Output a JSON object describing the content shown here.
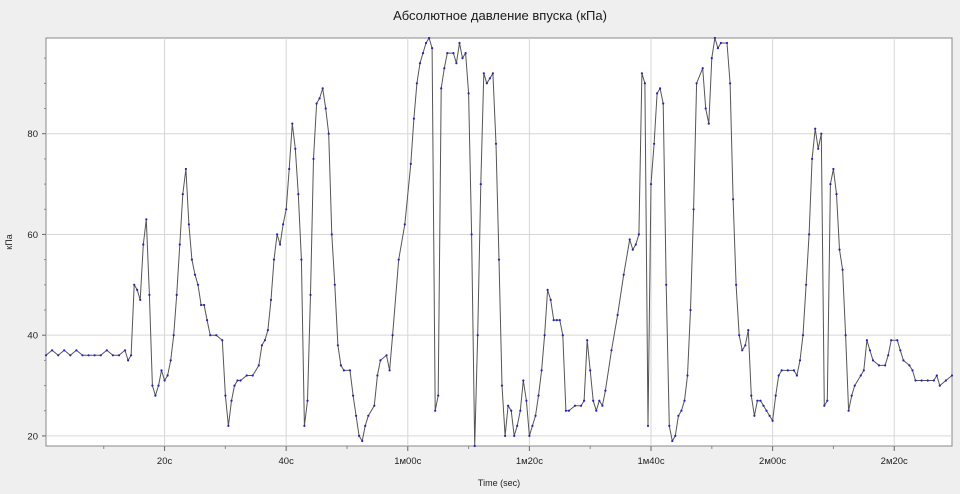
{
  "chart_data": {
    "type": "line",
    "title": "Абсолютное давление впуска (кПа)",
    "xlabel": "Time (sec)",
    "ylabel": "кПа",
    "x_unit": "seconds",
    "xlim": [
      0,
      149
    ],
    "ylim": [
      18,
      99
    ],
    "y_ticks": [
      20,
      40,
      60,
      80
    ],
    "x_ticks": [
      {
        "value": 19.5,
        "label": "20с"
      },
      {
        "value": 39.5,
        "label": "40с"
      },
      {
        "value": 59.5,
        "label": "1м00с"
      },
      {
        "value": 79.5,
        "label": "1м20с"
      },
      {
        "value": 99.5,
        "label": "1м40с"
      },
      {
        "value": 119.5,
        "label": "2м00с"
      },
      {
        "value": 139.5,
        "label": "2м20с"
      }
    ],
    "grid": true,
    "legend": "none",
    "line_color": "#555555",
    "marker_color": "#2222bb",
    "series": [
      {
        "points": [
          [
            0,
            36
          ],
          [
            1,
            37
          ],
          [
            2,
            36
          ],
          [
            3,
            37
          ],
          [
            4,
            36
          ],
          [
            5,
            37
          ],
          [
            6,
            36
          ],
          [
            7,
            36
          ],
          [
            8,
            36
          ],
          [
            9,
            36
          ],
          [
            10,
            37
          ],
          [
            11,
            36
          ],
          [
            12,
            36
          ],
          [
            13,
            37
          ],
          [
            13.5,
            35
          ],
          [
            14,
            36
          ],
          [
            14.5,
            50
          ],
          [
            15,
            49
          ],
          [
            15.5,
            47
          ],
          [
            16,
            58
          ],
          [
            16.5,
            63
          ],
          [
            17,
            48
          ],
          [
            17.5,
            30
          ],
          [
            18,
            28
          ],
          [
            18.5,
            30
          ],
          [
            19,
            33
          ],
          [
            19.5,
            31
          ],
          [
            20,
            32
          ],
          [
            20.5,
            35
          ],
          [
            21,
            40
          ],
          [
            21.5,
            48
          ],
          [
            22,
            58
          ],
          [
            22.5,
            68
          ],
          [
            23,
            73
          ],
          [
            23.5,
            62
          ],
          [
            24,
            55
          ],
          [
            24.5,
            52
          ],
          [
            25,
            50
          ],
          [
            25.5,
            46
          ],
          [
            26,
            46
          ],
          [
            26.5,
            43
          ],
          [
            27,
            40
          ],
          [
            28,
            40
          ],
          [
            29,
            39
          ],
          [
            29.5,
            28
          ],
          [
            30,
            22
          ],
          [
            30.5,
            27
          ],
          [
            31,
            30
          ],
          [
            31.5,
            31
          ],
          [
            32,
            31
          ],
          [
            33,
            32
          ],
          [
            34,
            32
          ],
          [
            35,
            34
          ],
          [
            35.5,
            38
          ],
          [
            36,
            39
          ],
          [
            36.5,
            41
          ],
          [
            37,
            47
          ],
          [
            37.5,
            55
          ],
          [
            38,
            60
          ],
          [
            38.5,
            58
          ],
          [
            39,
            62
          ],
          [
            39.5,
            65
          ],
          [
            40,
            73
          ],
          [
            40.5,
            82
          ],
          [
            41,
            77
          ],
          [
            41.5,
            68
          ],
          [
            42,
            55
          ],
          [
            42.5,
            22
          ],
          [
            43,
            27
          ],
          [
            43.5,
            48
          ],
          [
            44,
            75
          ],
          [
            44.5,
            86
          ],
          [
            45,
            87
          ],
          [
            45.5,
            89
          ],
          [
            46,
            85
          ],
          [
            46.5,
            80
          ],
          [
            47,
            60
          ],
          [
            47.5,
            50
          ],
          [
            48,
            38
          ],
          [
            48.5,
            34
          ],
          [
            49,
            33
          ],
          [
            50,
            33
          ],
          [
            50.5,
            28
          ],
          [
            51,
            24
          ],
          [
            51.5,
            20
          ],
          [
            52,
            19
          ],
          [
            52.5,
            22
          ],
          [
            53,
            24
          ],
          [
            54,
            26
          ],
          [
            54.5,
            32
          ],
          [
            55,
            35
          ],
          [
            56,
            36
          ],
          [
            56.5,
            33
          ],
          [
            57,
            40
          ],
          [
            58,
            55
          ],
          [
            59,
            62
          ],
          [
            60,
            74
          ],
          [
            60.5,
            83
          ],
          [
            61,
            90
          ],
          [
            61.5,
            94
          ],
          [
            62,
            96
          ],
          [
            62.5,
            98
          ],
          [
            63,
            99
          ],
          [
            63.5,
            97
          ],
          [
            64,
            25
          ],
          [
            64.5,
            28
          ],
          [
            65,
            89
          ],
          [
            65.5,
            93
          ],
          [
            66,
            96
          ],
          [
            67,
            96
          ],
          [
            67.5,
            94
          ],
          [
            68,
            98
          ],
          [
            68.5,
            95
          ],
          [
            69,
            96
          ],
          [
            69.5,
            88
          ],
          [
            70,
            60
          ],
          [
            70.5,
            18
          ],
          [
            71,
            40
          ],
          [
            71.5,
            70
          ],
          [
            72,
            92
          ],
          [
            72.5,
            90
          ],
          [
            73,
            91
          ],
          [
            73.5,
            92
          ],
          [
            74,
            78
          ],
          [
            74.5,
            55
          ],
          [
            75,
            30
          ],
          [
            75.5,
            20
          ],
          [
            76,
            26
          ],
          [
            76.5,
            25
          ],
          [
            77,
            20
          ],
          [
            77.5,
            22
          ],
          [
            78,
            25
          ],
          [
            78.5,
            31
          ],
          [
            79,
            27
          ],
          [
            79.5,
            20
          ],
          [
            80,
            22
          ],
          [
            80.5,
            24
          ],
          [
            81,
            28
          ],
          [
            81.5,
            33
          ],
          [
            82,
            40
          ],
          [
            82.5,
            49
          ],
          [
            83,
            47
          ],
          [
            83.5,
            43
          ],
          [
            84,
            43
          ],
          [
            84.5,
            43
          ],
          [
            85,
            40
          ],
          [
            85.5,
            25
          ],
          [
            86,
            25
          ],
          [
            87,
            26
          ],
          [
            88,
            26
          ],
          [
            88.5,
            27
          ],
          [
            89,
            39
          ],
          [
            89.5,
            33
          ],
          [
            90,
            27
          ],
          [
            90.5,
            25
          ],
          [
            91,
            27
          ],
          [
            91.5,
            26
          ],
          [
            92,
            29
          ],
          [
            93,
            37
          ],
          [
            94,
            44
          ],
          [
            95,
            52
          ],
          [
            96,
            59
          ],
          [
            96.5,
            57
          ],
          [
            97,
            58
          ],
          [
            97.5,
            60
          ],
          [
            98,
            92
          ],
          [
            98.5,
            90
          ],
          [
            99,
            22
          ],
          [
            99.5,
            70
          ],
          [
            100,
            78
          ],
          [
            100.5,
            88
          ],
          [
            101,
            89
          ],
          [
            101.5,
            86
          ],
          [
            102,
            50
          ],
          [
            102.5,
            22
          ],
          [
            103,
            19
          ],
          [
            103.5,
            20
          ],
          [
            104,
            24
          ],
          [
            104.5,
            25
          ],
          [
            105,
            27
          ],
          [
            105.5,
            32
          ],
          [
            106,
            45
          ],
          [
            106.5,
            65
          ],
          [
            107,
            90
          ],
          [
            108,
            93
          ],
          [
            108.5,
            85
          ],
          [
            109,
            82
          ],
          [
            109.5,
            95
          ],
          [
            110,
            99
          ],
          [
            110.5,
            97
          ],
          [
            111,
            98
          ],
          [
            112,
            98
          ],
          [
            112.5,
            90
          ],
          [
            113,
            67
          ],
          [
            113.5,
            50
          ],
          [
            114,
            40
          ],
          [
            114.5,
            37
          ],
          [
            115,
            38
          ],
          [
            115.5,
            41
          ],
          [
            116,
            28
          ],
          [
            116.5,
            24
          ],
          [
            117,
            27
          ],
          [
            117.5,
            27
          ],
          [
            118,
            26
          ],
          [
            118.5,
            25
          ],
          [
            119,
            24
          ],
          [
            119.5,
            23
          ],
          [
            120,
            28
          ],
          [
            120.5,
            32
          ],
          [
            121,
            33
          ],
          [
            122,
            33
          ],
          [
            123,
            33
          ],
          [
            123.5,
            32
          ],
          [
            124,
            35
          ],
          [
            124.5,
            40
          ],
          [
            125,
            50
          ],
          [
            125.5,
            60
          ],
          [
            126,
            75
          ],
          [
            126.5,
            81
          ],
          [
            127,
            77
          ],
          [
            127.5,
            80
          ],
          [
            128,
            26
          ],
          [
            128.5,
            27
          ],
          [
            129,
            70
          ],
          [
            129.5,
            73
          ],
          [
            130,
            68
          ],
          [
            130.5,
            57
          ],
          [
            131,
            53
          ],
          [
            131.5,
            40
          ],
          [
            132,
            25
          ],
          [
            132.5,
            28
          ],
          [
            133,
            30
          ],
          [
            134,
            32
          ],
          [
            134.5,
            33
          ],
          [
            135,
            39
          ],
          [
            135.5,
            37
          ],
          [
            136,
            35
          ],
          [
            137,
            34
          ],
          [
            138,
            34
          ],
          [
            138.5,
            36
          ],
          [
            139,
            39
          ],
          [
            140,
            39
          ],
          [
            140.5,
            37
          ],
          [
            141,
            35
          ],
          [
            142,
            34
          ],
          [
            142.5,
            33
          ],
          [
            143,
            31
          ],
          [
            144,
            31
          ],
          [
            145,
            31
          ],
          [
            146,
            31
          ],
          [
            146.5,
            32
          ],
          [
            147,
            30
          ],
          [
            148,
            31
          ],
          [
            149,
            32
          ]
        ]
      }
    ]
  }
}
